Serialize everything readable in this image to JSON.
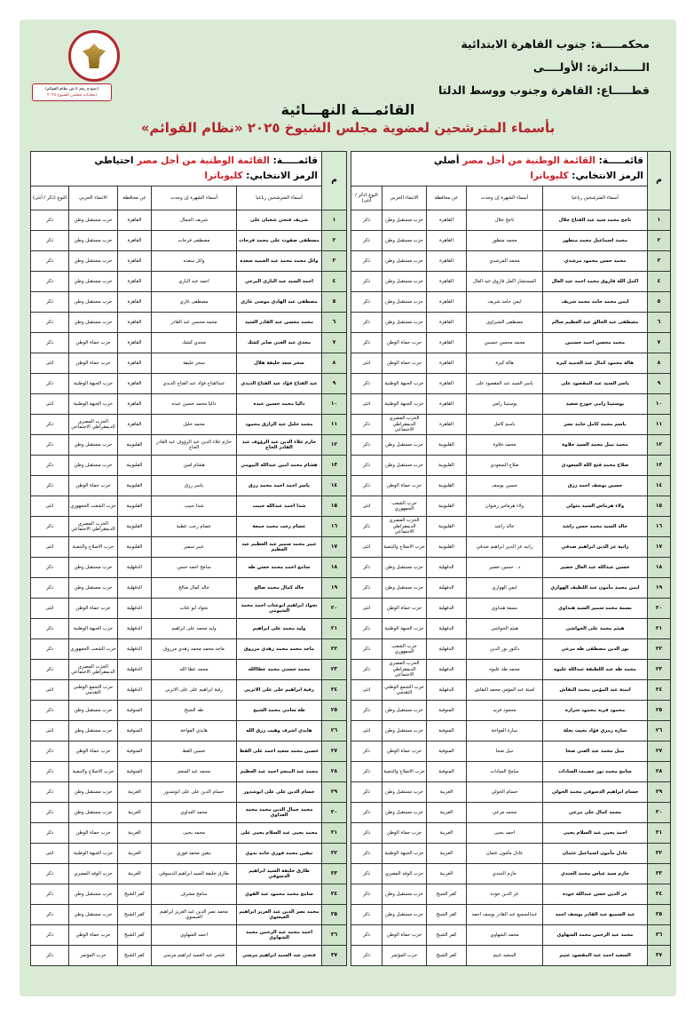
{
  "header": {
    "court": "محكمـــــة: جنوب القاهرة الابتدائية",
    "circuit": "الــــــدائرة: الأولــــى",
    "sector": "قطـــــاع: القاهرة وجنوب ووسط الدلتا",
    "form_box_line1": "(نموذج رقم ٥ ش نظام القوائم)",
    "form_box_line2": "انتخابات مجلس الشيوخ ٢٠٢٥",
    "logo_text": "الهيئة الوطنية للانتخابات National Election Authority",
    "title": "القائمـــة النهـــائية",
    "subtitle": "بأسماء المترشحين لعضوية مجلس الشيوخ ٢٠٢٥ «نظام القوائم»"
  },
  "colors": {
    "accent_red": "#d01c24",
    "page_bg": "#d9ead5",
    "number_col": "#cfe4cb"
  },
  "columns": {
    "num": "م",
    "name": "أسماء المترشحين رباعيا",
    "popular": "أسماء الشهرة إن وجدت",
    "governorate": "عن محافظة",
    "party": "الانتماء الحزبي",
    "gender": "النوع (ذكر / أنثى)"
  },
  "tables": [
    {
      "list_prefix": "قائمـــــة: ",
      "list_name": "القائمة الوطنية من أجل مصر",
      "list_type": "أصلي",
      "symbol_prefix": "الرمز الانتخابي: ",
      "symbol": "كليوباترا",
      "rows": [
        [
          "١",
          "ناجح محمد سيد عبد الفتاح جلال",
          "ناجح جلال",
          "القاهرة",
          "حزب مستقبل وطن",
          "ذكر"
        ],
        [
          "٢",
          "محمد اسماعيل محمد منظور",
          "محمد منظور",
          "القاهرة",
          "حزب مستقبل وطن",
          "ذكر"
        ],
        [
          "٣",
          "محمد حسن محمود مرشدي",
          "محمد المرشدي",
          "القاهرة",
          "حزب مستقبل وطن",
          "ذكر"
        ],
        [
          "٤",
          "اكمل الله فاروق محمد احمد عبد العال",
          "المستشار اكمل فاروق عبد العال",
          "القاهرة",
          "حزب مستقبل وطن",
          "ذكر"
        ],
        [
          "٥",
          "ايمن محمد حامد محمد شريف",
          "ايمن حامد شريف",
          "القاهرة",
          "حزب مستقبل وطن",
          "ذكر"
        ],
        [
          "٦",
          "مصطفى عبد الخالق عبد العظيم سالم",
          "مصطفى الشبراوي",
          "القاهرة",
          "حزب مستقبل وطن",
          "ذكر"
        ],
        [
          "٧",
          "محمد محسن احمد حسنين",
          "محمد محسن حسنين",
          "القاهرة",
          "حزب حماة الوطن",
          "ذكر"
        ],
        [
          "٨",
          "هالة محمود كمال عبد الحميد كيرة",
          "هالة كيرة",
          "القاهرة",
          "حزب حماة الوطن",
          "انثى"
        ],
        [
          "٩",
          "ياسر السيد عبد المقصود على",
          "ياسر السيد عبد المقصود على",
          "القاهرة",
          "حزب الجبهة الوطنية",
          "ذكر"
        ],
        [
          "١٠",
          "يوستينا رامي جورج سعيد",
          "يوستينا رامي",
          "القاهرة",
          "حزب الجبهة الوطنية",
          "انثى"
        ],
        [
          "١١",
          "باسم محمد كامل حامد نصر",
          "باسم كامل",
          "القاهرة",
          "الحزب المصري الديمقراطي الاجتماعي",
          "ذكر"
        ],
        [
          "١٢",
          "محمد نبيل محمد السيد حلاوة",
          "محمد حلاوة",
          "القليوبية",
          "حزب مستقبل وطن",
          "ذكر"
        ],
        [
          "١٣",
          "صلاح محمد فتح الله السعودي",
          "صلاح السعودي",
          "القليوبية",
          "حزب مستقبل وطن",
          "ذكر"
        ],
        [
          "١٤",
          "حسين يوسف احمد رزق",
          "حسين يوسف",
          "القليوبية",
          "حزب حماة الوطن",
          "ذكر"
        ],
        [
          "١٥",
          "ولاء هرماس السيد متولي",
          "ولاء هرماس رضوان",
          "القليوبية",
          "حزب الشعب الجمهوري",
          "انثى"
        ],
        [
          "١٦",
          "خالد السيد محمد حسن راشد",
          "خالد راشد",
          "القليوبية",
          "الحزب المصري الديمقراطي الاجتماعي",
          "ذكر"
        ],
        [
          "١٧",
          "رانيه عز الدين ابراهيم صدقي",
          "رانيه عز الدين ابراهيم صدقي",
          "القليوبية",
          "حزب الاصلاح والتنمية",
          "انثى"
        ],
        [
          "١٨",
          "حسين عبدالله عبد العال خضير",
          "د . حسين خضير",
          "الدقهلية",
          "حزب مستقبل وطن",
          "ذكر"
        ],
        [
          "١٩",
          "ايمن محمد مأمون عبد اللطيف الهواري",
          "ايمن الهواري",
          "الدقهلية",
          "حزب مستقبل وطن",
          "ذكر"
        ],
        [
          "٢٠",
          "بسمة محمد سمير السيد هنداوي",
          "بسمة هنداوي",
          "الدقهلية",
          "حزب حماة الوطن",
          "انثى"
        ],
        [
          "٢١",
          "هيثم محمد على الحواشي",
          "هيثم الحواشي",
          "الدقهلية",
          "حزب الجبهة الوطنية",
          "ذكر"
        ],
        [
          "٢٢",
          "نور الدين مصطفى طه مرعي",
          "دكتور نور الدين",
          "الدقهلية",
          "حزب الشعب الجمهوري",
          "ذكر"
        ],
        [
          "٢٣",
          "محمد طه عبد اللطيفة عبدالله عليوه",
          "محمد طه عليوه",
          "الدقهلية",
          "الحزب المصري الديمقراطي الاجتماعي",
          "ذكر"
        ],
        [
          "٢٤",
          "امينة عبد المؤمن محمد النقاش",
          "امينة عبد المؤمن محمد النقاش",
          "الدقهلية",
          "حزب التجمع الوطني التقدمي",
          "انثى"
        ],
        [
          "٢٥",
          "محمود فريد محمود شراره",
          "محمود فريد",
          "المنوفية",
          "حزب مستقبل وطن",
          "ذكر"
        ],
        [
          "٢٦",
          "ساره رمزي فؤاد بخيت نخلة",
          "سارة الفواخة",
          "المنوفية",
          "حزب مستقبل وطن",
          "انثى"
        ],
        [
          "٢٧",
          "نبيل محمد عبد الغني ضحا",
          "نبيل ضحا",
          "المنوفية",
          "حزب حماة الوطن",
          "ذكر"
        ],
        [
          "٢٨",
          "سامح محمد نور عصمت السادات",
          "سامح السادات",
          "المنوفية",
          "حزب الاصلاح والتنمية",
          "ذكر"
        ],
        [
          "٢٩",
          "حسام ابراهيم الدسوقي محمد الخولي",
          "حسام الخولي",
          "الغربية",
          "حزب مستقبل وطن",
          "ذكر"
        ],
        [
          "٣٠",
          "محمد كمال على مرعي",
          "محمد مرعي",
          "الغربية",
          "حزب مستقبل وطن",
          "ذكر"
        ],
        [
          "٣١",
          "احمد يحيى عبد السلام يحيى",
          "احمد يحيى",
          "الغربية",
          "حزب حماة الوطن",
          "ذكر"
        ],
        [
          "٣٢",
          "عادل مأمون اسماعيل عثمان",
          "عادل مأمون عثمان",
          "الغربية",
          "حزب الجبهة الوطنية",
          "ذكر"
        ],
        [
          "٣٣",
          "حازم سيد عباس محمد الجندي",
          "حازم الجندي",
          "الغربية",
          "حزب الوفد المصري",
          "ذكر"
        ],
        [
          "٣٤",
          "عز الدين حسن عبدالله جوده",
          "عز الدين جوده",
          "كفر الشيخ",
          "حزب مستقبل وطن",
          "ذكر"
        ],
        [
          "٣٥",
          "عبد السميع عبد القادر يوسف احمد",
          "عبدالسميع عبد القادر يوسف احمد",
          "كفر الشيخ",
          "حزب مستقبل وطن",
          "ذكر"
        ],
        [
          "٣٦",
          "محمد عبد الرحمن محمد الشهاوي",
          "محمد الشهاوي",
          "كفر الشيخ",
          "حزب حماة الوطن",
          "ذكر"
        ],
        [
          "٣٧",
          "السعيد احمد عبد المقصود غنيم",
          "السعيد غنيم",
          "كفر الشيخ",
          "حزب المؤتمر",
          "ذكر"
        ]
      ]
    },
    {
      "list_prefix": "قائمـــــة: ",
      "list_name": "القائمة الوطنية من أجل مصر",
      "list_type": "احتياطي",
      "symbol_prefix": "الرمز الانتخابي: ",
      "symbol": "كليوباترا",
      "rows": [
        [
          "١",
          "شريف فتحي شعبان على",
          "شريف الجمال",
          "القاهرة",
          "حزب مستقبل وطن",
          "ذكر"
        ],
        [
          "٢",
          "مصطفى صفوت على محمد فرحات",
          "مصطفى فرحات",
          "القاهرة",
          "حزب مستقبل وطن",
          "ذكر"
        ],
        [
          "٣",
          "وائل محمد محمد عبد الحميد سعده",
          "وائل سعده",
          "القاهرة",
          "حزب مستقبل وطن",
          "ذكر"
        ],
        [
          "٤",
          "احمد السيد عبد البارى البرعي",
          "احمد عبد البارى",
          "القاهرة",
          "حزب مستقبل وطن",
          "ذكر"
        ],
        [
          "٥",
          "مصطفى عبد الهادي موسى غازي",
          "مصطفى غازي",
          "القاهرة",
          "حزب مستقبل وطن",
          "ذكر"
        ],
        [
          "٦",
          "محمد محسن عبد القادر السيد",
          "محمد محسن عبد القادر",
          "القاهرة",
          "حزب مستقبل وطن",
          "ذكر"
        ],
        [
          "٧",
          "مجدي عبد الغني صابر كشك",
          "مجدي كشك",
          "القاهرة",
          "حزب حماة الوطن",
          "ذكر"
        ],
        [
          "٨",
          "سحر سعد خليفة هلال",
          "سحر خليفة",
          "القاهرة",
          "حزب حماة الوطن",
          "انثى"
        ],
        [
          "٩",
          "عبد الفتاح فؤاد عبد الفتاح الديدي",
          "عبدالفتاح فؤاد عبد الفتاح الديدي",
          "القاهرة",
          "حزب الجبهة الوطنية",
          "ذكر"
        ],
        [
          "١٠",
          "داليا محمد حسين عبده",
          "داليا محمد حسين عبده",
          "القاهرة",
          "حزب الجبهة الوطنية",
          "انثى"
        ],
        [
          "١١",
          "محمد خليل عبد الرازق محمود",
          "محمد خليل",
          "القاهرة",
          "الحزب المصري الديمقراطي الاجتماعي",
          "ذكر"
        ],
        [
          "١٢",
          "حازم علاء الدين عبد الرؤوف عبد القادر الحاج",
          "حازم علاء الدين عبد الرؤوف عبد القادر الحاج",
          "القليوبية",
          "حزب مستقبل وطن",
          "ذكر"
        ],
        [
          "١٣",
          "هشام محمد امين عبدالله البيومي",
          "هشام امين",
          "القليوبية",
          "حزب مستقبل وطن",
          "ذكر"
        ],
        [
          "١٤",
          "ياسر احمد احمد محمد رزق",
          "ياسر رزق",
          "القليوبية",
          "حزب حماة الوطن",
          "ذكر"
        ],
        [
          "١٥",
          "شذا احمد عبدالله حبيب",
          "شذا حبيب",
          "القليوبية",
          "حزب الشعب الجمهوري",
          "انثى"
        ],
        [
          "١٦",
          "عصام رجب محمد جمعة",
          "عصام رجب عطية",
          "القليوبية",
          "الحزب المصري الديمقراطي الاجتماعي",
          "ذكر"
        ],
        [
          "١٧",
          "عبير محمد سمير عبد العظيم عبد العظيم",
          "عبير سمير",
          "القليوبية",
          "حزب الاصلاح والتنمية",
          "انثى"
        ],
        [
          "١٨",
          "سامح احمد محمد حسن طه",
          "سامح احمد حسن",
          "الدقهلية",
          "حزب مستقبل وطن",
          "ذكر"
        ],
        [
          "١٩",
          "خالد كمال محمد صالح",
          "خالد كمال صالح",
          "الدقهلية",
          "حزب مستقبل وطن",
          "ذكر"
        ],
        [
          "٢٠",
          "نجواد ابراهيم ابوعتاب احمد محمد الشيومي",
          "نجواد ابو عتاب",
          "الدقهلية",
          "حزب حماة الوطن",
          "انثى"
        ],
        [
          "٢١",
          "وليد محمد على ابراهيم",
          "وليد محمد على ابراهيم",
          "الدقهلية",
          "حزب الجبهة الوطنية",
          "ذكر"
        ],
        [
          "٢٢",
          "ماجد محمد محمد زهدي مرزوق",
          "ماجد محمد محمد زهدي مرزوق",
          "الدقهلية",
          "حزب الشعب الجمهوري",
          "ذكر"
        ],
        [
          "٢٣",
          "محمد حسني محمد عطاالله",
          "محمد عطا الله",
          "الدقهلية",
          "الحزب المصري الديمقراطي الاجتماعي",
          "ذكر"
        ],
        [
          "٢٤",
          "رقية ابراهيم على على الاتربي",
          "رقية ابراهيم على على الاتربي",
          "الدقهلية",
          "حزب التجمع الوطني التقدمي",
          "انثى"
        ],
        [
          "٢٥",
          "طه سامي محمد الشيخ",
          "طه الشيخ",
          "المنوفية",
          "حزب مستقبل وطن",
          "ذكر"
        ],
        [
          "٢٦",
          "هايدي اشرف وهيب رزق الله",
          "هايدي الفواخة",
          "المنوفية",
          "حزب مستقبل وطن",
          "انثى"
        ],
        [
          "٢٧",
          "حسين محمد سعيد احمد على القط",
          "حسين القط",
          "المنوفية",
          "حزب حماة الوطن",
          "ذكر"
        ],
        [
          "٢٨",
          "محمد عبد المنعم احمد عبد العظيم",
          "محمد عبد المنعم",
          "المنوفية",
          "حزب الاصلاح والتنمية",
          "ذكر"
        ],
        [
          "٢٩",
          "حسام الدين على على ابوشدور",
          "حسام الدين على على ابوشدور",
          "الغربية",
          "حزب مستقبل وطن",
          "ذكر"
        ],
        [
          "٣٠",
          "محمد جمال الدين محمد محمد العداوي",
          "محمد العداوي",
          "الغربية",
          "حزب مستقبل وطن",
          "ذكر"
        ],
        [
          "٣١",
          "محمد يحيى عبد السلام يحيى على",
          "محمد يحيى",
          "الغربية",
          "حزب حماة الوطن",
          "ذكر"
        ],
        [
          "٣٢",
          "نيفين محمد فوزي حامد بدوي",
          "نيفين محمد فوزي",
          "الغربية",
          "حزب الجبهة الوطنية",
          "انثى"
        ],
        [
          "٣٣",
          "طارق خليفة السيد ابراهيم الدسوقي",
          "طارق خليفة السيد ابراهيم الدسوقي",
          "الغربية",
          "حزب الوفد المصري",
          "ذكر"
        ],
        [
          "٣٤",
          "سامح محمد محمود عبد القوي",
          "سامح مشرف",
          "كفر الشيخ",
          "حزب مستقبل وطن",
          "ذكر"
        ],
        [
          "٣٥",
          "محمد نصر الدين عبد العزيز ابراهيم العيسوي",
          "محمد نصر الدين عبد العزيز ابراهيم العيسوي",
          "كفر الشيخ",
          "حزب مستقبل وطن",
          "ذكر"
        ],
        [
          "٣٦",
          "احمد محمد عبد الرحمن محمد الشهاوي",
          "احمد الشهاوي",
          "كفر الشيخ",
          "حزب حماة الوطن",
          "ذكر"
        ],
        [
          "٣٧",
          "فتحي عبد العميد ابراهيم مرسي",
          "فتحي عبد العميد ابراهيم مرسي",
          "كفر الشيخ",
          "حزب المؤتمر",
          "ذكر"
        ]
      ]
    }
  ]
}
